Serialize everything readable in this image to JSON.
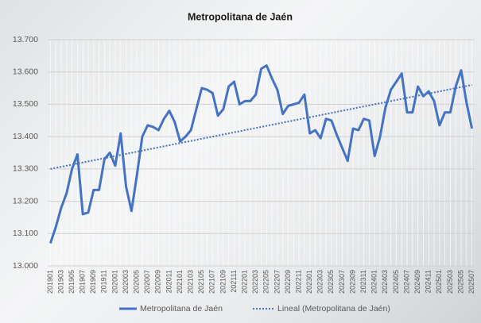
{
  "chart_data": {
    "type": "line",
    "title": "Metropolitana de Jaén",
    "categories": [
      "201901",
      null,
      "201903",
      null,
      "201905",
      null,
      "201907",
      null,
      "201909",
      null,
      "201911",
      null,
      "202001",
      null,
      "202003",
      null,
      "202005",
      null,
      "202007",
      null,
      "202009",
      null,
      "202011",
      null,
      "202101",
      null,
      "202103",
      null,
      "202105",
      null,
      "202107",
      null,
      "202109",
      null,
      "202111",
      null,
      "202201",
      null,
      "202203",
      null,
      "202205",
      null,
      "202207",
      null,
      "202209",
      null,
      "202211",
      null,
      "202301",
      null,
      "202303",
      null,
      "202305",
      null,
      "202307",
      null,
      "202309",
      null,
      "202311",
      null,
      "202401",
      null,
      "202403",
      null,
      "202405",
      null,
      "202407",
      null,
      "202409",
      null,
      "202411",
      null,
      "202501",
      null,
      "202503",
      null,
      "202505",
      null,
      "202507"
    ],
    "series": [
      {
        "name": "Metropolitana de Jaén",
        "color": "#4472c4",
        "values": [
          13070,
          13120,
          13180,
          13225,
          13300,
          13345,
          13160,
          13165,
          13235,
          13235,
          13330,
          13350,
          13310,
          13410,
          13245,
          13170,
          13280,
          13400,
          13435,
          13430,
          13420,
          13455,
          13480,
          13445,
          13385,
          13400,
          13420,
          13485,
          13550,
          13545,
          13535,
          13465,
          13485,
          13555,
          13570,
          13500,
          13510,
          13510,
          13530,
          13610,
          13620,
          13580,
          13545,
          13470,
          13495,
          13500,
          13505,
          13530,
          13410,
          13420,
          13395,
          13455,
          13450,
          13405,
          13365,
          13325,
          13425,
          13420,
          13455,
          13450,
          13340,
          13400,
          13490,
          13545,
          13570,
          13595,
          13475,
          13475,
          13555,
          13525,
          13540,
          13510,
          13435,
          13475,
          13475,
          13555,
          13605,
          13505,
          13425
        ]
      }
    ],
    "trendline": {
      "name": "Lineal (Metropolitana de Jaén)",
      "color": "#4472c4",
      "start": 13300,
      "end": 13560
    },
    "ylim": [
      13000,
      13700
    ],
    "yticks": [
      {
        "value": 13000,
        "label": "13.000"
      },
      {
        "value": 13100,
        "label": "13.100"
      },
      {
        "value": 13200,
        "label": "13.200"
      },
      {
        "value": 13300,
        "label": "13.300"
      },
      {
        "value": 13400,
        "label": "13.400"
      },
      {
        "value": 13500,
        "label": "13.500"
      },
      {
        "value": 13600,
        "label": "13.600"
      },
      {
        "value": 13700,
        "label": "13.700"
      }
    ],
    "grid": true,
    "legend": "bottom"
  }
}
